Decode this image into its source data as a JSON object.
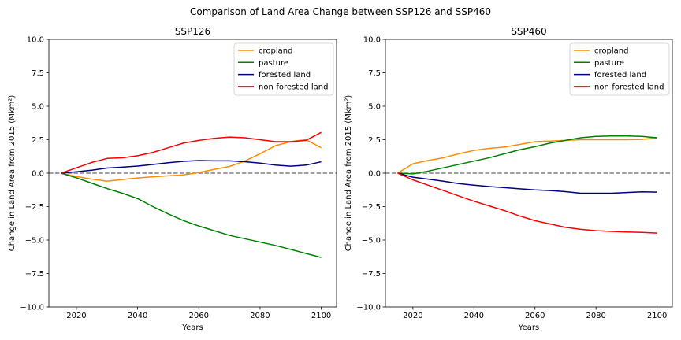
{
  "figure": {
    "title": "Comparison of Land Area Change between SSP126 and SSP460"
  },
  "chart_data": [
    {
      "type": "line",
      "title": "SSP126",
      "xlabel": "Years",
      "ylabel": "Change in Land Area from 2015 (Mkm²)",
      "xlim": [
        2011,
        2105
      ],
      "ylim": [
        -10,
        10
      ],
      "xticks": [
        2020,
        2040,
        2060,
        2080,
        2100
      ],
      "yticks": [
        -10,
        -7.5,
        -5,
        -2.5,
        0,
        2.5,
        5,
        7.5,
        10
      ],
      "ytick_labels": [
        "−10.0",
        "−7.5",
        "−5.0",
        "−2.5",
        "0.0",
        "2.5",
        "5.0",
        "7.5",
        "10.0"
      ],
      "grid": false,
      "legend_position": "top-right",
      "reference_line": {
        "y": 0,
        "style": "dashed",
        "color": "#808080"
      },
      "x": [
        2015,
        2020,
        2025,
        2030,
        2035,
        2040,
        2045,
        2050,
        2055,
        2060,
        2065,
        2070,
        2075,
        2080,
        2085,
        2090,
        2095,
        2100
      ],
      "series": [
        {
          "name": "cropland",
          "color": "#ff8c00",
          "values": [
            0,
            -0.25,
            -0.45,
            -0.6,
            -0.48,
            -0.36,
            -0.27,
            -0.2,
            -0.13,
            0.05,
            0.28,
            0.5,
            0.9,
            1.45,
            2.05,
            2.35,
            2.5,
            1.9
          ]
        },
        {
          "name": "pasture",
          "color": "#008000",
          "values": [
            0,
            -0.35,
            -0.75,
            -1.15,
            -1.5,
            -1.9,
            -2.5,
            -3.05,
            -3.55,
            -3.95,
            -4.3,
            -4.65,
            -4.9,
            -5.15,
            -5.4,
            -5.7,
            -6.0,
            -6.3
          ]
        },
        {
          "name": "forested land",
          "color": "#000080",
          "values": [
            0,
            0.1,
            0.22,
            0.38,
            0.45,
            0.53,
            0.65,
            0.78,
            0.88,
            0.94,
            0.92,
            0.92,
            0.85,
            0.75,
            0.6,
            0.52,
            0.6,
            0.85
          ]
        },
        {
          "name": "non-forested land",
          "color": "#ff0000",
          "values": [
            0,
            0.4,
            0.8,
            1.1,
            1.15,
            1.3,
            1.55,
            1.9,
            2.25,
            2.45,
            2.6,
            2.7,
            2.65,
            2.5,
            2.35,
            2.35,
            2.45,
            3.05
          ]
        }
      ]
    },
    {
      "type": "line",
      "title": "SSP460",
      "xlabel": "Years",
      "ylabel": "Change in Land Area from 2015 (Mkm²)",
      "xlim": [
        2011,
        2105
      ],
      "ylim": [
        -10,
        10
      ],
      "xticks": [
        2020,
        2040,
        2060,
        2080,
        2100
      ],
      "yticks": [
        -10,
        -7.5,
        -5,
        -2.5,
        0,
        2.5,
        5,
        7.5,
        10
      ],
      "ytick_labels": [
        "−10.0",
        "−7.5",
        "−5.0",
        "−2.5",
        "0.0",
        "2.5",
        "5.0",
        "7.5",
        "10.0"
      ],
      "grid": false,
      "legend_position": "top-right",
      "reference_line": {
        "y": 0,
        "style": "dashed",
        "color": "#808080"
      },
      "x": [
        2015,
        2020,
        2025,
        2030,
        2035,
        2040,
        2045,
        2050,
        2055,
        2060,
        2065,
        2070,
        2075,
        2080,
        2085,
        2090,
        2095,
        2100
      ],
      "series": [
        {
          "name": "cropland",
          "color": "#ff8c00",
          "values": [
            0,
            0.7,
            0.95,
            1.15,
            1.45,
            1.7,
            1.85,
            1.95,
            2.15,
            2.35,
            2.4,
            2.45,
            2.5,
            2.5,
            2.5,
            2.5,
            2.52,
            2.65
          ]
        },
        {
          "name": "pasture",
          "color": "#008000",
          "values": [
            0,
            -0.05,
            0.15,
            0.4,
            0.65,
            0.9,
            1.15,
            1.45,
            1.75,
            1.98,
            2.25,
            2.45,
            2.65,
            2.75,
            2.78,
            2.78,
            2.75,
            2.65
          ]
        },
        {
          "name": "forested land",
          "color": "#000080",
          "values": [
            0,
            -0.3,
            -0.45,
            -0.6,
            -0.78,
            -0.9,
            -1.0,
            -1.08,
            -1.17,
            -1.25,
            -1.3,
            -1.38,
            -1.5,
            -1.5,
            -1.5,
            -1.45,
            -1.4,
            -1.42
          ]
        },
        {
          "name": "non-forested land",
          "color": "#ff0000",
          "values": [
            0,
            -0.5,
            -0.9,
            -1.3,
            -1.7,
            -2.1,
            -2.45,
            -2.8,
            -3.2,
            -3.55,
            -3.8,
            -4.05,
            -4.2,
            -4.3,
            -4.35,
            -4.4,
            -4.43,
            -4.48
          ]
        }
      ]
    }
  ]
}
